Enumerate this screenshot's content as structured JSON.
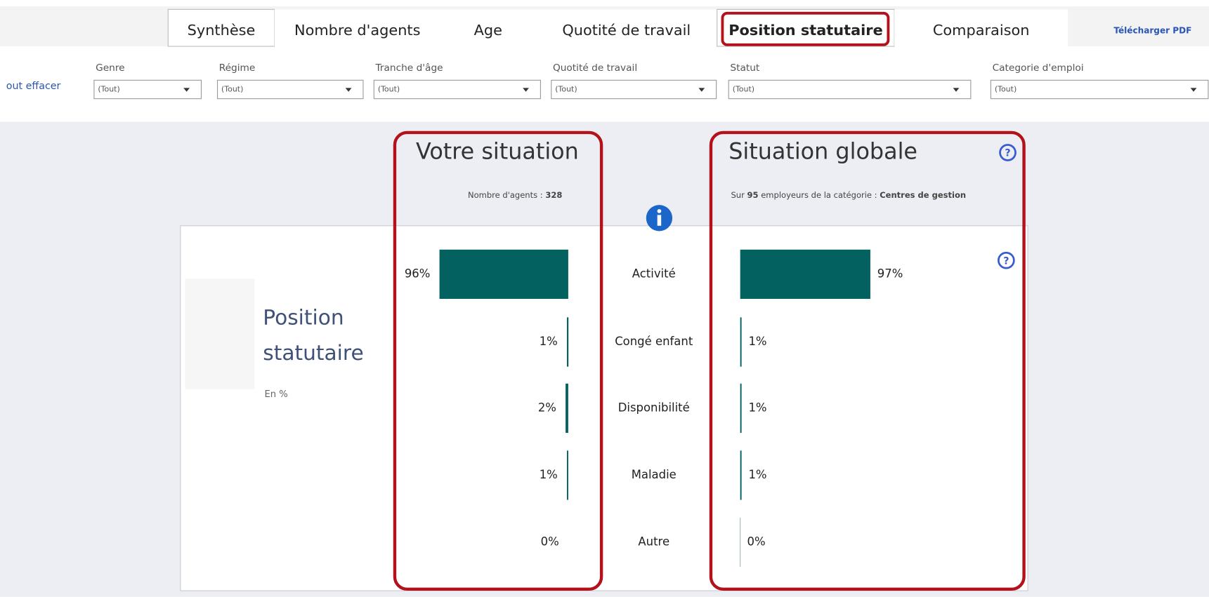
{
  "tabs": [
    "Synthèse",
    "Nombre d'agents",
    "Age",
    "Quotité de travail",
    "Position statutaire",
    "Comparaison"
  ],
  "download": "Télécharger PDF",
  "clear": "out effacer",
  "filters": [
    {
      "label": "Genre",
      "value": "(Tout)"
    },
    {
      "label": "Régime",
      "value": "(Tout)"
    },
    {
      "label": "Tranche d'âge",
      "value": "(Tout)"
    },
    {
      "label": "Quotité de travail",
      "value": "(Tout)"
    },
    {
      "label": "Statut",
      "value": "(Tout)"
    },
    {
      "label": "Categorie d'emploi",
      "value": "(Tout)"
    }
  ],
  "panel": {
    "title": "Position statutaire",
    "unit": "En %"
  },
  "left_note": {
    "label": "Nombre d'agents :",
    "count": 328
  },
  "right_note": {
    "prefix": "Sur",
    "count": 95,
    "middle": "employeurs de la catégorie :",
    "category": "Centres de gestion"
  },
  "chart": {
    "categories": [
      "Activité",
      "Congé enfant",
      "Disponibilité",
      "Maladie",
      "Autre"
    ],
    "color": "#03625f",
    "series": [
      {
        "name": "Votre situation",
        "values": [
          96,
          1,
          2,
          1,
          0
        ],
        "value_labels": [
          "96%",
          "1%",
          "2%",
          "1%",
          "0%"
        ]
      },
      {
        "name": "Situation globale",
        "values": [
          97,
          1,
          1,
          1,
          0
        ],
        "value_labels": [
          "97%",
          "1%",
          "1%",
          "1%",
          "0%"
        ]
      }
    ]
  }
}
